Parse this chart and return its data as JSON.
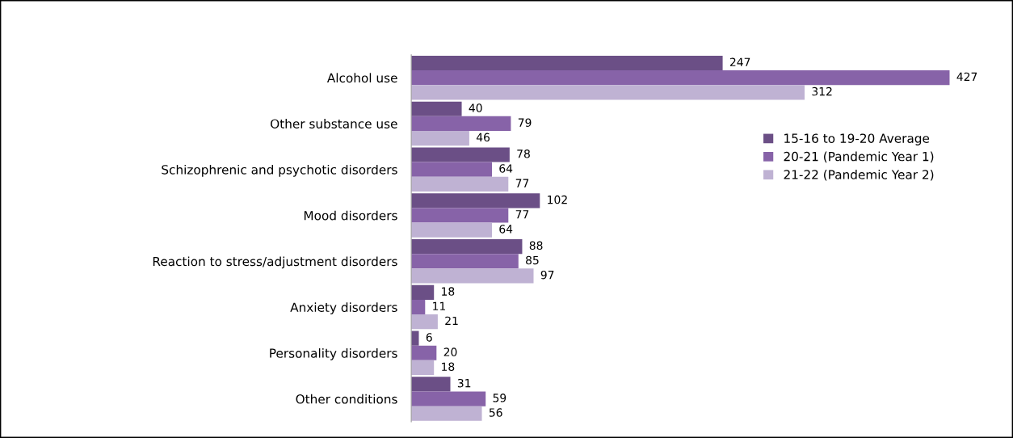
{
  "chart_data": {
    "type": "bar",
    "orientation": "horizontal",
    "data_labels": true,
    "legend": "right",
    "grid": false,
    "categories": [
      "Alcohol use",
      "Other substance use",
      "Schizophrenic and psychotic disorders",
      "Mood disorders",
      "Reaction to stress/adjustment disorders",
      "Anxiety disorders",
      "Personality disorders",
      "Other conditions"
    ],
    "series": [
      {
        "name": "15-16 to 19-20 Average",
        "color": "#6b4f86",
        "values": [
          247,
          40,
          78,
          102,
          88,
          18,
          6,
          31
        ]
      },
      {
        "name": "20-21 (Pandemic Year 1)",
        "color": "#8763a8",
        "values": [
          427,
          79,
          64,
          77,
          85,
          11,
          20,
          59
        ]
      },
      {
        "name": "21-22 (Pandemic Year 2)",
        "color": "#bfb2d3",
        "values": [
          312,
          46,
          77,
          64,
          97,
          21,
          18,
          56
        ]
      }
    ]
  }
}
